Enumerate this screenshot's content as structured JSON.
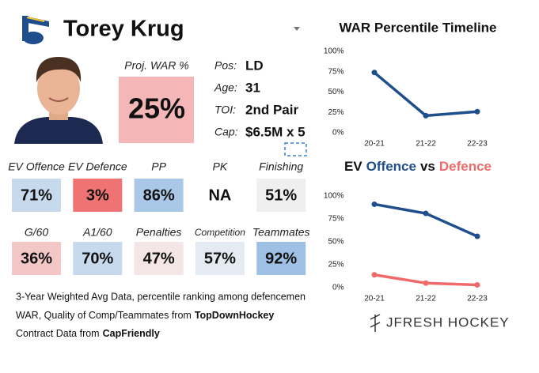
{
  "header": {
    "name": "Torey Krug"
  },
  "proj_war": {
    "label": "Proj. WAR %",
    "value": "25%",
    "color": "#f4b6b6"
  },
  "info": [
    {
      "label": "Pos:",
      "value": "LD"
    },
    {
      "label": "Age:",
      "value": "31"
    },
    {
      "label": "TOI:",
      "value": "2nd Pair"
    },
    {
      "label": "Cap:",
      "value": "$6.5M x 5"
    }
  ],
  "stats": [
    {
      "label": "EV Offence",
      "value": "71%",
      "color": "#c6d9ed"
    },
    {
      "label": "EV Defence",
      "value": "3%",
      "color": "#f07373"
    },
    {
      "label": "PP",
      "value": "86%",
      "color": "#a9c7e7"
    },
    {
      "label": "PK",
      "value": "NA"
    },
    {
      "label": "Finishing",
      "value": "51%",
      "color": "#efefef"
    },
    {
      "label": "G/60",
      "value": "36%",
      "color": "#f4c7c7"
    },
    {
      "label": "A1/60",
      "value": "70%",
      "color": "#c6d9ed"
    },
    {
      "label": "Penalties",
      "value": "47%",
      "color": "#f4e6e6"
    },
    {
      "label": "Competition",
      "value": "57%",
      "color": "#e5ebf2"
    },
    {
      "label": "Teammates",
      "value": "92%",
      "color": "#9dc0e4"
    }
  ],
  "notes": [
    {
      "text": "3-Year Weighted Avg Data, percentile ranking among defencemen"
    },
    {
      "text": "WAR, Quality of Comp/Teammates from",
      "source": "TopDownHockey"
    },
    {
      "text": "Contract Data from",
      "source": "CapFriendly"
    }
  ],
  "brand": "JFRESH HOCKEY",
  "chart_data": [
    {
      "type": "line",
      "title": "WAR Percentile Timeline",
      "categories": [
        "20-21",
        "21-22",
        "22-23"
      ],
      "values": [
        74,
        21,
        26
      ],
      "color": "#1f4e8c",
      "ylim": [
        0,
        100
      ],
      "yticks": [
        {
          "value": 0,
          "label": "0%"
        },
        {
          "value": 25,
          "label": "25%"
        },
        {
          "value": 50,
          "label": "50%"
        },
        {
          "value": 75,
          "label": "75%"
        },
        {
          "value": 100,
          "label": "100%"
        }
      ]
    },
    {
      "type": "line",
      "title_lead": "EV",
      "title_join": "vs",
      "categories": [
        "20-21",
        "21-22",
        "22-23"
      ],
      "series": [
        {
          "name": "Offence",
          "color": "#1f4e8c",
          "values": [
            91,
            81,
            56
          ]
        },
        {
          "name": "Defence",
          "color": "#f06a6a",
          "values": [
            14,
            5,
            3
          ]
        }
      ],
      "ylim": [
        0,
        100
      ],
      "yticks": [
        {
          "value": 0,
          "label": "0%"
        },
        {
          "value": 25,
          "label": "25%"
        },
        {
          "value": 50,
          "label": "50%"
        },
        {
          "value": 75,
          "label": "75%"
        },
        {
          "value": 100,
          "label": "100%"
        }
      ]
    }
  ]
}
